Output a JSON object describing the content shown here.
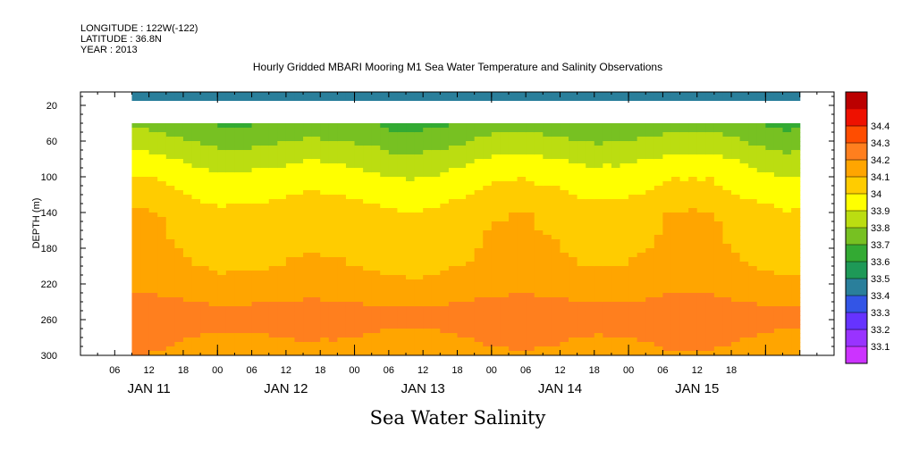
{
  "header": {
    "longitude": "LONGITUDE : 122W(-122)",
    "latitude": "LATITUDE : 36.8N",
    "year": "YEAR : 2013"
  },
  "chart_data": {
    "type": "heatmap",
    "title": "Hourly Gridded MBARI Mooring M1 Sea Water Temperature and Salinity Observations",
    "subtitle": "Sea Water Salinity",
    "xlabel": "",
    "ylabel": "DEPTH (m)",
    "ylim": [
      300,
      0
    ],
    "y_ticks": [
      20,
      60,
      100,
      140,
      180,
      220,
      260,
      300
    ],
    "x_hour_ticks": [
      "06",
      "12",
      "18",
      "00",
      "06",
      "12",
      "18",
      "00",
      "06",
      "12",
      "18",
      "00",
      "06",
      "12",
      "18",
      "00",
      "06",
      "12",
      "18"
    ],
    "x_date_labels": [
      "JAN 11",
      "JAN 12",
      "JAN 13",
      "JAN 14",
      "JAN 15"
    ],
    "data_start_hour": 9,
    "data_end_hour": 126,
    "colorbar": {
      "levels": [
        33.1,
        33.2,
        33.3,
        33.4,
        33.5,
        33.6,
        33.7,
        33.8,
        33.9,
        34,
        34.1,
        34.2,
        34.3,
        34.4
      ],
      "labels": [
        "33.1",
        "33.2",
        "33.3",
        "33.4",
        "33.5",
        "33.6",
        "33.7",
        "33.8",
        "33.9",
        "34",
        "34.1",
        "34.2",
        "34.3",
        "34.4"
      ],
      "colors": [
        "#cc33ff",
        "#9933ff",
        "#6633ff",
        "#3355e6",
        "#2a7f9b",
        "#1e9957",
        "#33aa33",
        "#77c122",
        "#bbdd11",
        "#ffff00",
        "#ffcc00",
        "#ffa500",
        "#ff7f1e",
        "#ff4d00",
        "#ee1100",
        "#bb0000"
      ]
    },
    "depth_profile": [
      {
        "depth": 5,
        "value": 33.45
      },
      {
        "depth": 15,
        "value": 33.45
      },
      {
        "depth": 40,
        "value": 33.72
      },
      {
        "depth": 60,
        "value": 33.8
      },
      {
        "depth": 80,
        "value": 33.88
      },
      {
        "depth": 100,
        "value": 33.95
      },
      {
        "depth": 120,
        "value": 33.99
      },
      {
        "depth": 140,
        "value": 34.06
      },
      {
        "depth": 180,
        "value": 34.08
      },
      {
        "depth": 210,
        "value": 34.12
      },
      {
        "depth": 240,
        "value": 34.2
      },
      {
        "depth": 255,
        "value": 34.27
      },
      {
        "depth": 280,
        "value": 34.2
      },
      {
        "depth": 300,
        "value": 34.17
      }
    ]
  }
}
